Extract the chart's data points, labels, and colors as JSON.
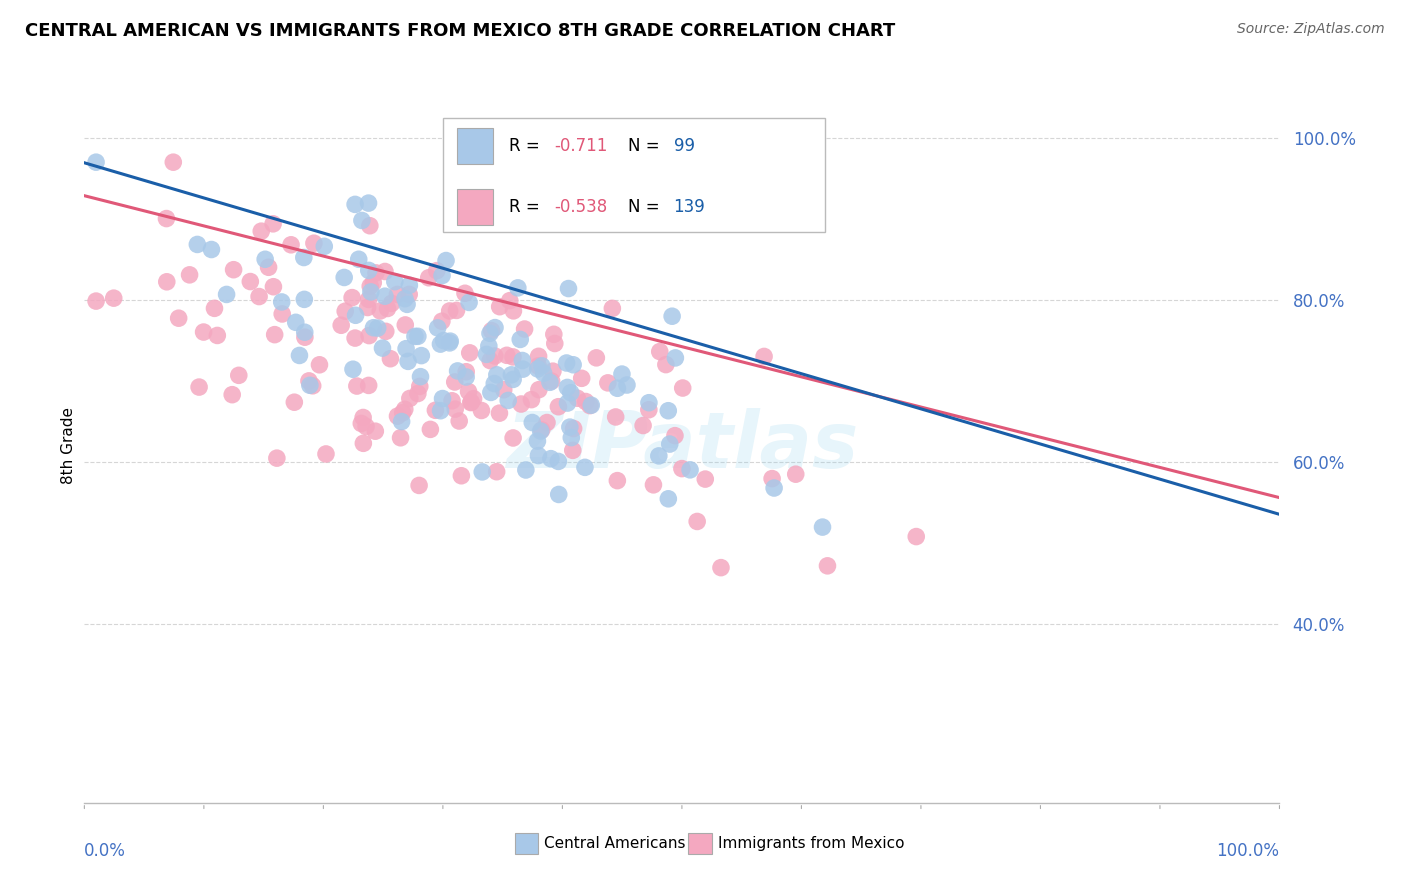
{
  "title": "CENTRAL AMERICAN VS IMMIGRANTS FROM MEXICO 8TH GRADE CORRELATION CHART",
  "source": "Source: ZipAtlas.com",
  "ylabel": "8th Grade",
  "legend_blue_label": "Central Americans",
  "legend_pink_label": "Immigrants from Mexico",
  "blue_R": -0.711,
  "blue_N": 99,
  "pink_R": -0.538,
  "pink_N": 139,
  "blue_color": "#A8C8E8",
  "pink_color": "#F4A8C0",
  "blue_line_color": "#1A5EA8",
  "pink_line_color": "#E05878",
  "watermark": "ZIPatlas",
  "grid_color": "#CCCCCC",
  "background_color": "#FFFFFF",
  "ymin": 0.18,
  "ymax": 1.06,
  "xmin": -0.01,
  "xmax": 1.01,
  "ytick_vals": [
    1.0,
    0.8,
    0.6,
    0.4
  ],
  "ytick_labels": [
    "100.0%",
    "80.0%",
    "60.0%",
    "40.0%"
  ],
  "ytick_color": "#4472C4",
  "blue_R_color": "#E05878",
  "blue_N_color": "#1A5EA8",
  "pink_R_color": "#E05878",
  "pink_N_color": "#1A5EA8",
  "legend_R_label_color": "#000000",
  "legend_N_label_color": "#000000"
}
